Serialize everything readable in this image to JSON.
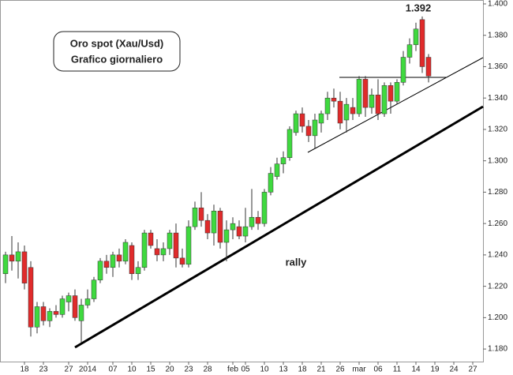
{
  "chart_data": {
    "type": "candlestick",
    "annotations": [
      "Oro spot (Xau/Usd)",
      "Grafico giornaliero",
      "rally",
      "1.392"
    ],
    "categories": [
      null,
      null,
      null,
      "18",
      null,
      null,
      "23",
      null,
      null,
      null,
      "27",
      null,
      null,
      "2014",
      null,
      null,
      null,
      "07",
      null,
      null,
      "10",
      null,
      null,
      "15",
      null,
      null,
      "20",
      null,
      null,
      "23",
      null,
      null,
      "28",
      null,
      null,
      null,
      "feb",
      null,
      "05",
      null,
      null,
      "10",
      null,
      null,
      "13",
      null,
      null,
      "18",
      null,
      null,
      "21",
      null,
      null,
      "26",
      null,
      null,
      "mar",
      null,
      null,
      "06",
      null,
      null,
      "11",
      null,
      null,
      "14",
      null,
      null,
      "19",
      null,
      null,
      "24",
      null,
      null,
      "27"
    ],
    "open": [
      1.228,
      1.24,
      1.236,
      1.242,
      1.232,
      1.194,
      1.207,
      1.198,
      1.204,
      1.202,
      1.21,
      1.214,
      1.198,
      1.208,
      1.212,
      1.224,
      1.236,
      1.232,
      1.24,
      1.236,
      1.246,
      1.228,
      1.232,
      1.254,
      1.244,
      1.24,
      1.244,
      1.254,
      1.238,
      1.234,
      1.258,
      1.27,
      1.262,
      1.254,
      1.268,
      1.248,
      1.256,
      1.258,
      1.252,
      1.258,
      1.264,
      1.26,
      1.28,
      1.29,
      1.298,
      1.302,
      1.318,
      1.33,
      1.322,
      1.316,
      1.324,
      1.33,
      1.34,
      1.338,
      1.326,
      1.334,
      1.33,
      1.352,
      1.334,
      1.342,
      1.33,
      1.348,
      1.338,
      1.35,
      1.366,
      1.374,
      1.39,
      1.366,
      null,
      null,
      null,
      null,
      null,
      null,
      null
    ],
    "high": [
      1.242,
      1.252,
      1.248,
      1.246,
      1.236,
      1.21,
      1.21,
      1.206,
      1.208,
      1.214,
      1.216,
      1.218,
      1.212,
      1.218,
      1.226,
      1.238,
      1.24,
      1.242,
      1.244,
      1.25,
      1.248,
      1.236,
      1.256,
      1.256,
      1.25,
      1.248,
      1.256,
      1.26,
      1.244,
      1.262,
      1.274,
      1.28,
      1.266,
      1.272,
      1.27,
      1.262,
      1.264,
      1.262,
      1.27,
      1.282,
      1.268,
      1.282,
      1.296,
      1.302,
      1.306,
      1.322,
      1.332,
      1.334,
      1.326,
      1.33,
      1.332,
      1.344,
      1.346,
      1.344,
      1.34,
      1.34,
      1.354,
      1.354,
      1.346,
      1.352,
      1.35,
      1.35,
      1.352,
      1.37,
      1.378,
      1.388,
      1.392,
      1.368,
      null,
      null,
      null,
      null,
      null,
      null,
      null
    ],
    "low": [
      1.222,
      1.23,
      1.225,
      1.218,
      1.188,
      1.19,
      1.195,
      1.194,
      1.2,
      1.2,
      1.204,
      1.198,
      1.184,
      1.206,
      1.21,
      1.222,
      1.228,
      1.226,
      1.232,
      1.234,
      1.224,
      1.224,
      1.23,
      1.244,
      1.236,
      1.236,
      1.24,
      1.232,
      1.232,
      1.232,
      1.256,
      1.258,
      1.25,
      1.246,
      1.244,
      1.236,
      1.25,
      1.25,
      1.248,
      1.256,
      1.256,
      1.258,
      1.278,
      1.288,
      1.292,
      1.3,
      1.316,
      1.318,
      1.312,
      1.308,
      1.318,
      1.326,
      1.334,
      1.32,
      1.318,
      1.326,
      1.328,
      1.328,
      1.33,
      1.326,
      1.328,
      1.33,
      1.336,
      1.348,
      1.362,
      1.37,
      1.356,
      1.35,
      null,
      null,
      null,
      null,
      null,
      null,
      null
    ],
    "close": [
      1.24,
      1.236,
      1.242,
      1.222,
      1.194,
      1.207,
      1.198,
      1.204,
      1.202,
      1.212,
      1.214,
      1.2,
      1.208,
      1.212,
      1.224,
      1.236,
      1.232,
      1.24,
      1.236,
      1.248,
      1.228,
      1.232,
      1.254,
      1.246,
      1.24,
      1.244,
      1.254,
      1.238,
      1.234,
      1.258,
      1.27,
      1.262,
      1.254,
      1.268,
      1.248,
      1.256,
      1.26,
      1.252,
      1.258,
      1.264,
      1.26,
      1.28,
      1.292,
      1.298,
      1.302,
      1.32,
      1.33,
      1.322,
      1.316,
      1.326,
      1.33,
      1.34,
      1.338,
      1.324,
      1.336,
      1.33,
      1.352,
      1.334,
      1.342,
      1.33,
      1.348,
      1.338,
      1.35,
      1.366,
      1.374,
      1.384,
      1.36,
      1.354,
      null,
      null,
      null,
      null,
      null,
      null,
      null
    ],
    "up_color": "#3fd93f",
    "down_color": "#e02b2b",
    "ylim": [
      1.172,
      1.4025
    ],
    "yticks": [
      {
        "value": 1.18,
        "label": "1.180"
      },
      {
        "value": 1.2,
        "label": "1.200"
      },
      {
        "value": 1.22,
        "label": "1.220"
      },
      {
        "value": 1.24,
        "label": "1.240"
      },
      {
        "value": 1.26,
        "label": "1.260"
      },
      {
        "value": 1.28,
        "label": "1.280"
      },
      {
        "value": 1.3,
        "label": "1.300"
      },
      {
        "value": 1.32,
        "label": "1.320"
      },
      {
        "value": 1.34,
        "label": "1.340"
      },
      {
        "value": 1.36,
        "label": "1.360"
      },
      {
        "value": 1.38,
        "label": "1.380"
      },
      {
        "value": 1.4,
        "label": "1.400"
      }
    ]
  }
}
